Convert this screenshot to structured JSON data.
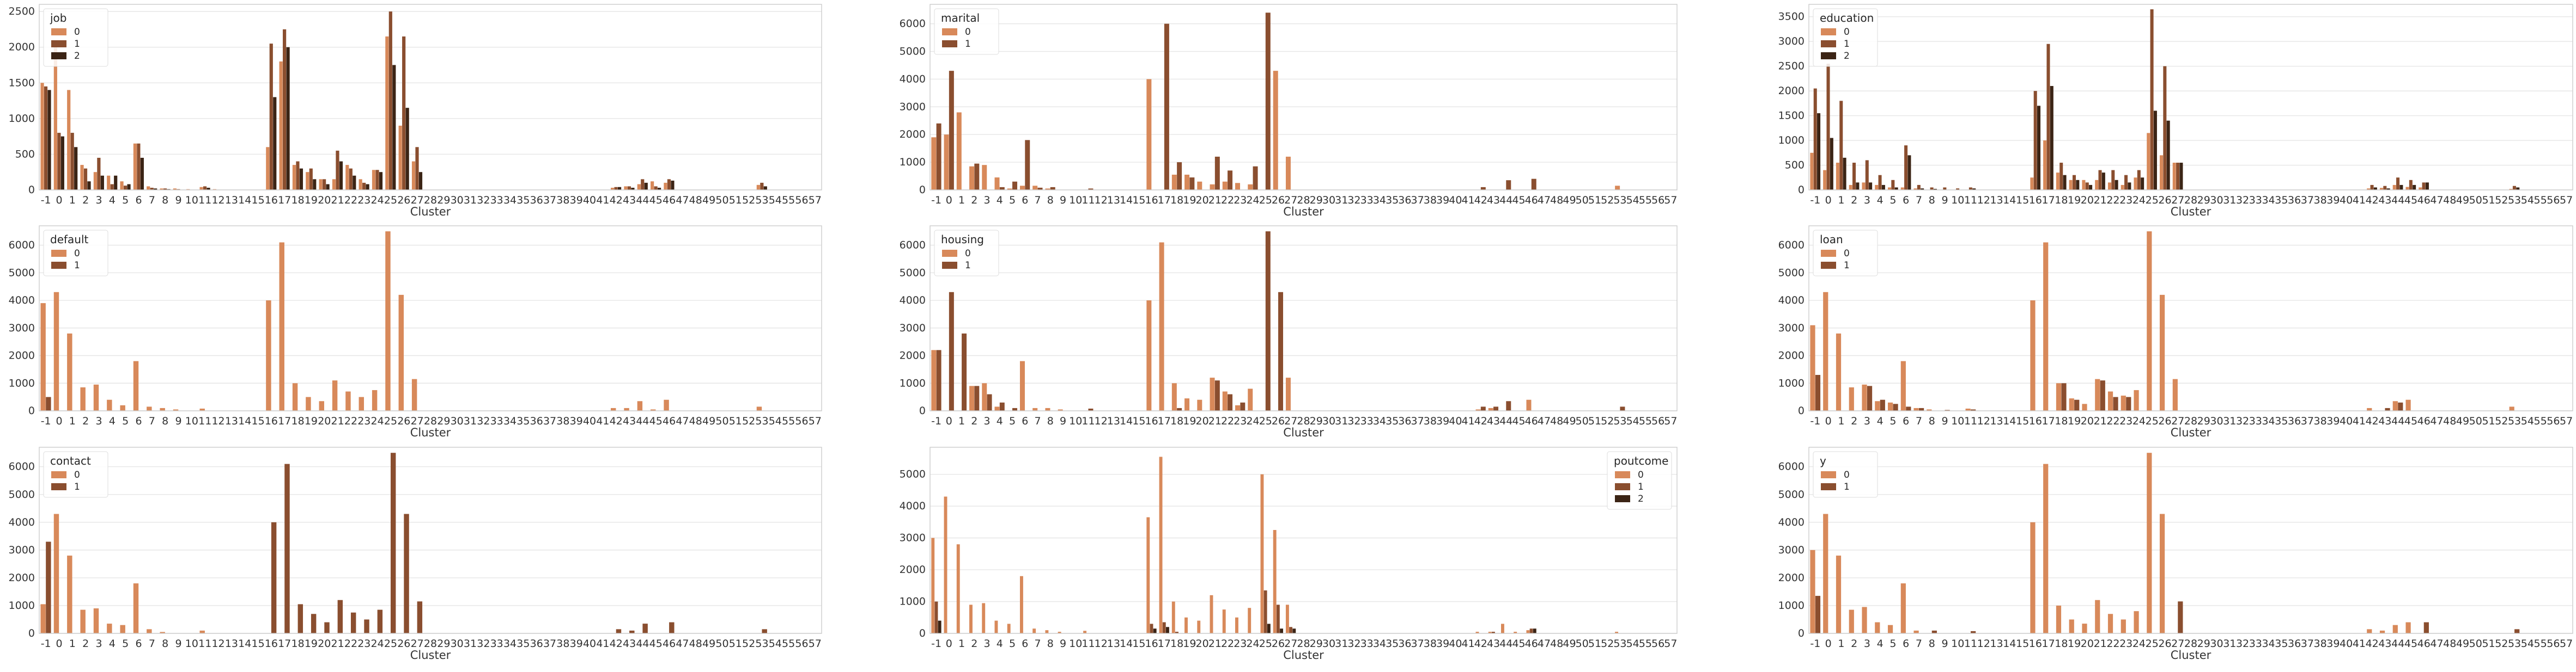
{
  "figure": {
    "palette": [
      "#d8895a",
      "#8a4e2f",
      "#3b2415"
    ]
  },
  "chart_data": [
    {
      "type": "bar",
      "xlabel": "Cluster",
      "ylim": [
        0,
        2600
      ],
      "yticks": [
        0,
        500,
        1000,
        1500,
        2000,
        2500
      ],
      "legend": {
        "title": "job",
        "placement": "top-left"
      },
      "series": [
        {
          "name": "0",
          "values": {
            "-1": 1500,
            "0": 2050,
            "1": 1400,
            "2": 350,
            "3": 250,
            "4": 200,
            "5": 120,
            "6": 650,
            "7": 50,
            "8": 20,
            "9": 20,
            "10": 10,
            "11": 40,
            "12": 10,
            "16": 600,
            "17": 1800,
            "18": 350,
            "19": 250,
            "20": 150,
            "21": 150,
            "22": 350,
            "23": 150,
            "24": 280,
            "25": 2150,
            "26": 900,
            "27": 400,
            "42": 30,
            "43": 50,
            "44": 80,
            "45": 120,
            "46": 100,
            "53": 70
          }
        },
        {
          "name": "1",
          "values": {
            "-1": 1450,
            "0": 800,
            "1": 800,
            "2": 300,
            "3": 450,
            "4": 80,
            "5": 60,
            "6": 650,
            "7": 30,
            "8": 20,
            "9": 10,
            "11": 50,
            "16": 2050,
            "17": 2250,
            "18": 400,
            "19": 300,
            "20": 150,
            "21": 550,
            "22": 300,
            "23": 100,
            "24": 280,
            "25": 2500,
            "26": 2150,
            "27": 600,
            "42": 40,
            "43": 50,
            "44": 150,
            "45": 50,
            "46": 150,
            "53": 100
          }
        },
        {
          "name": "2",
          "values": {
            "-1": 1400,
            "0": 750,
            "1": 600,
            "2": 120,
            "3": 200,
            "4": 200,
            "5": 80,
            "6": 450,
            "7": 20,
            "8": 10,
            "11": 30,
            "16": 1300,
            "17": 2000,
            "18": 300,
            "19": 150,
            "20": 80,
            "21": 400,
            "22": 200,
            "23": 80,
            "24": 250,
            "25": 1750,
            "26": 1150,
            "27": 250,
            "42": 40,
            "43": 30,
            "44": 100,
            "45": 30,
            "46": 130,
            "53": 50
          }
        }
      ]
    },
    {
      "type": "bar",
      "xlabel": "Cluster",
      "ylim": [
        0,
        6700
      ],
      "yticks": [
        0,
        1000,
        2000,
        3000,
        4000,
        5000,
        6000
      ],
      "legend": {
        "title": "marital",
        "placement": "top-left"
      },
      "series": [
        {
          "name": "0",
          "values": {
            "-1": 1900,
            "0": 2000,
            "1": 2800,
            "2": 850,
            "3": 900,
            "4": 450,
            "5": 50,
            "6": 150,
            "7": 150,
            "8": 50,
            "16": 4000,
            "17": 0,
            "18": 550,
            "19": 550,
            "20": 300,
            "21": 200,
            "22": 300,
            "23": 250,
            "24": 200,
            "25": 0,
            "26": 4300,
            "27": 1200,
            "53": 150
          }
        },
        {
          "name": "1",
          "values": {
            "-1": 2400,
            "0": 4300,
            "2": 950,
            "4": 100,
            "5": 300,
            "6": 1800,
            "7": 80,
            "8": 100,
            "11": 50,
            "17": 6000,
            "18": 1000,
            "19": 450,
            "21": 1200,
            "22": 700,
            "24": 850,
            "25": 6400,
            "42": 100,
            "44": 350,
            "46": 400
          }
        }
      ]
    },
    {
      "type": "bar",
      "xlabel": "Cluster",
      "ylim": [
        0,
        3750
      ],
      "yticks": [
        0,
        500,
        1000,
        1500,
        2000,
        2500,
        3000,
        3500
      ],
      "legend": {
        "title": "education",
        "placement": "top-left"
      },
      "series": [
        {
          "name": "0",
          "values": {
            "-1": 750,
            "0": 400,
            "1": 550,
            "2": 100,
            "3": 150,
            "4": 100,
            "5": 50,
            "6": 50,
            "7": 30,
            "16": 250,
            "17": 1000,
            "18": 350,
            "19": 200,
            "20": 200,
            "21": 200,
            "22": 150,
            "23": 100,
            "24": 250,
            "25": 1150,
            "26": 700,
            "27": 550,
            "42": 30,
            "43": 40,
            "44": 100,
            "45": 60,
            "46": 50,
            "53": 20
          }
        },
        {
          "name": "1",
          "values": {
            "-1": 2050,
            "0": 2550,
            "1": 1800,
            "2": 550,
            "3": 600,
            "4": 300,
            "5": 200,
            "6": 900,
            "7": 100,
            "8": 50,
            "9": 50,
            "10": 30,
            "11": 50,
            "16": 2000,
            "17": 2950,
            "18": 550,
            "19": 300,
            "20": 150,
            "21": 400,
            "22": 400,
            "23": 300,
            "24": 400,
            "25": 3650,
            "26": 2500,
            "27": 550,
            "42": 100,
            "43": 80,
            "44": 250,
            "45": 200,
            "46": 150,
            "53": 80
          }
        },
        {
          "name": "2",
          "values": {
            "-1": 1550,
            "0": 1050,
            "1": 650,
            "2": 150,
            "3": 150,
            "4": 100,
            "5": 50,
            "6": 700,
            "7": 30,
            "8": 20,
            "11": 30,
            "16": 1700,
            "17": 2100,
            "18": 300,
            "19": 200,
            "20": 100,
            "21": 350,
            "22": 200,
            "23": 150,
            "24": 250,
            "25": 1600,
            "26": 1400,
            "27": 550,
            "42": 50,
            "43": 30,
            "44": 100,
            "45": 100,
            "46": 150,
            "53": 50
          }
        }
      ]
    },
    {
      "type": "bar",
      "xlabel": "Cluster",
      "ylim": [
        0,
        6700
      ],
      "yticks": [
        0,
        1000,
        2000,
        3000,
        4000,
        5000,
        6000
      ],
      "legend": {
        "title": "default",
        "placement": "top-left"
      },
      "series": [
        {
          "name": "0",
          "values": {
            "-1": 3900,
            "0": 4300,
            "1": 2800,
            "2": 850,
            "3": 950,
            "4": 400,
            "5": 200,
            "6": 1800,
            "7": 150,
            "8": 100,
            "9": 50,
            "11": 80,
            "16": 4000,
            "17": 6100,
            "18": 1000,
            "19": 500,
            "20": 350,
            "21": 1100,
            "22": 700,
            "23": 500,
            "24": 750,
            "25": 6500,
            "26": 4200,
            "27": 1150,
            "42": 100,
            "43": 100,
            "44": 350,
            "45": 50,
            "46": 400,
            "53": 150
          }
        },
        {
          "name": "1",
          "values": {
            "-1": 500
          }
        }
      ]
    },
    {
      "type": "bar",
      "xlabel": "Cluster",
      "ylim": [
        0,
        6700
      ],
      "yticks": [
        0,
        1000,
        2000,
        3000,
        4000,
        5000,
        6000
      ],
      "legend": {
        "title": "housing",
        "placement": "top-left"
      },
      "series": [
        {
          "name": "0",
          "values": {
            "-1": 2200,
            "1": 0,
            "2": 900,
            "3": 1000,
            "4": 150,
            "6": 1800,
            "7": 100,
            "8": 100,
            "9": 50,
            "16": 4000,
            "17": 6100,
            "18": 1000,
            "19": 450,
            "20": 400,
            "21": 1200,
            "22": 700,
            "23": 200,
            "24": 800,
            "25": 0,
            "26": 0,
            "27": 1200,
            "42": 50,
            "43": 100,
            "46": 400
          }
        },
        {
          "name": "1",
          "values": {
            "-1": 2200,
            "0": 4300,
            "1": 2800,
            "2": 900,
            "3": 600,
            "4": 300,
            "5": 100,
            "11": 80,
            "18": 100,
            "19": 0,
            "21": 1100,
            "22": 600,
            "23": 300,
            "24": 0,
            "25": 6500,
            "26": 4300,
            "42": 150,
            "43": 150,
            "44": 350,
            "53": 150
          }
        }
      ]
    },
    {
      "type": "bar",
      "xlabel": "Cluster",
      "ylim": [
        0,
        6700
      ],
      "yticks": [
        0,
        1000,
        2000,
        3000,
        4000,
        5000,
        6000
      ],
      "legend": {
        "title": "loan",
        "placement": "top-left"
      },
      "series": [
        {
          "name": "0",
          "values": {
            "-1": 3100,
            "0": 4300,
            "1": 2800,
            "2": 850,
            "3": 950,
            "4": 350,
            "5": 300,
            "6": 1800,
            "7": 100,
            "8": 50,
            "11": 80,
            "16": 4000,
            "17": 6100,
            "18": 1000,
            "19": 450,
            "20": 250,
            "21": 1150,
            "22": 700,
            "23": 550,
            "24": 750,
            "25": 6500,
            "26": 4200,
            "27": 1150,
            "42": 100,
            "44": 350,
            "45": 400,
            "53": 150
          }
        },
        {
          "name": "1",
          "values": {
            "-1": 1300,
            "3": 900,
            "4": 400,
            "5": 250,
            "6": 150,
            "7": 100,
            "9": 30,
            "11": 50,
            "18": 1000,
            "19": 400,
            "20": 0,
            "21": 1100,
            "22": 500,
            "23": 500,
            "43": 100,
            "44": 300
          }
        }
      ]
    },
    {
      "type": "bar",
      "xlabel": "Cluster",
      "ylim": [
        0,
        6700
      ],
      "yticks": [
        0,
        1000,
        2000,
        3000,
        4000,
        5000,
        6000
      ],
      "legend": {
        "title": "contact",
        "placement": "top-left"
      },
      "series": [
        {
          "name": "0",
          "values": {
            "-1": 1050,
            "0": 4300,
            "1": 2800,
            "2": 850,
            "3": 900,
            "4": 350,
            "5": 300,
            "6": 1800,
            "7": 150,
            "8": 50,
            "11": 100
          }
        },
        {
          "name": "1",
          "values": {
            "-1": 3300,
            "16": 4000,
            "17": 6100,
            "18": 1050,
            "19": 700,
            "20": 400,
            "21": 1200,
            "22": 750,
            "23": 500,
            "24": 850,
            "25": 6500,
            "26": 4300,
            "27": 1150,
            "42": 150,
            "43": 100,
            "44": 350,
            "46": 400,
            "53": 150
          }
        }
      ]
    },
    {
      "type": "bar",
      "xlabel": "Cluster",
      "ylim": [
        0,
        5850
      ],
      "yticks": [
        0,
        1000,
        2000,
        3000,
        4000,
        5000
      ],
      "legend": {
        "title": "poutcome",
        "placement": "top-right"
      },
      "series": [
        {
          "name": "0",
          "values": {
            "-1": 3000,
            "0": 4300,
            "1": 2800,
            "2": 900,
            "3": 950,
            "4": 400,
            "5": 300,
            "6": 1800,
            "7": 150,
            "8": 100,
            "9": 50,
            "11": 80,
            "16": 3650,
            "17": 5550,
            "18": 1000,
            "19": 500,
            "20": 400,
            "21": 1200,
            "22": 750,
            "23": 500,
            "24": 800,
            "25": 5000,
            "26": 3250,
            "27": 900,
            "42": 50,
            "43": 50,
            "44": 300,
            "45": 50,
            "46": 100,
            "53": 50
          }
        },
        {
          "name": "1",
          "values": {
            "-1": 1000,
            "16": 300,
            "17": 350,
            "18": 50,
            "25": 1350,
            "26": 900,
            "27": 200,
            "43": 50,
            "46": 150
          }
        },
        {
          "name": "2",
          "values": {
            "-1": 400,
            "16": 150,
            "17": 200,
            "25": 300,
            "26": 150,
            "27": 150,
            "46": 150
          }
        }
      ]
    },
    {
      "type": "bar",
      "xlabel": "Cluster",
      "ylim": [
        0,
        6700
      ],
      "yticks": [
        0,
        1000,
        2000,
        3000,
        4000,
        5000,
        6000
      ],
      "legend": {
        "title": "y",
        "placement": "top-left"
      },
      "series": [
        {
          "name": "0",
          "values": {
            "-1": 3000,
            "0": 4300,
            "1": 2800,
            "2": 850,
            "3": 950,
            "4": 400,
            "5": 300,
            "6": 1800,
            "7": 100,
            "16": 4000,
            "17": 6100,
            "18": 1000,
            "19": 500,
            "20": 350,
            "21": 1200,
            "22": 700,
            "23": 500,
            "24": 800,
            "25": 6500,
            "26": 4300,
            "42": 150,
            "43": 100,
            "44": 300,
            "45": 400
          }
        },
        {
          "name": "1",
          "values": {
            "-1": 1350,
            "8": 100,
            "11": 80,
            "27": 1150,
            "46": 400,
            "53": 150
          }
        }
      ]
    }
  ]
}
